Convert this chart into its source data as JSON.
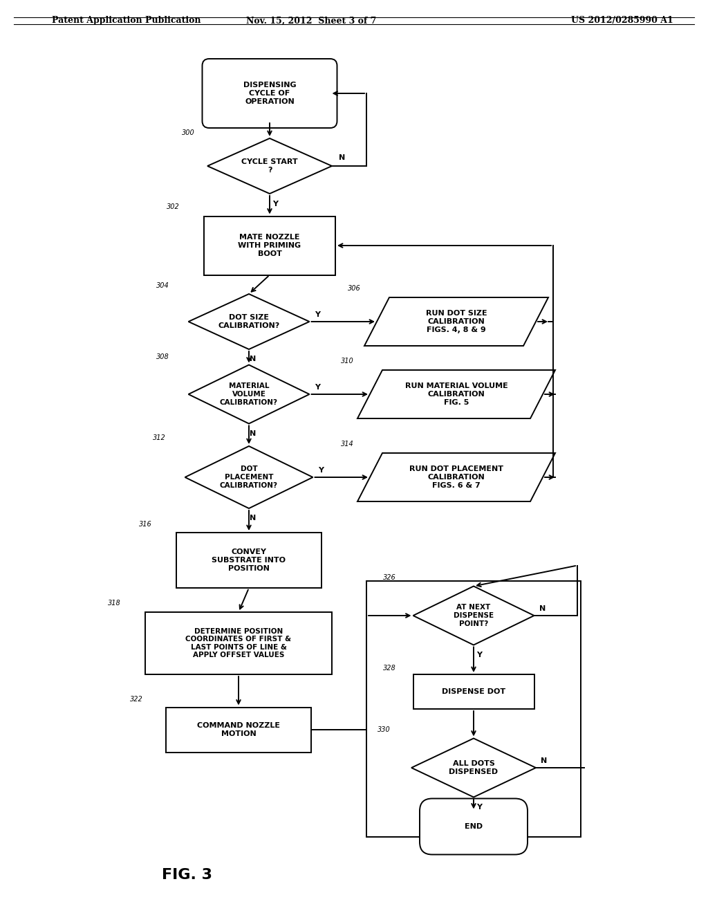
{
  "title_left": "Patent Application Publication",
  "title_center": "Nov. 15, 2012  Sheet 3 of 7",
  "title_right": "US 2012/0285990 A1",
  "fig_label": "FIG. 3",
  "background": "#ffffff",
  "line_color": "#000000",
  "text_color": "#000000",
  "font_size": 8.0
}
